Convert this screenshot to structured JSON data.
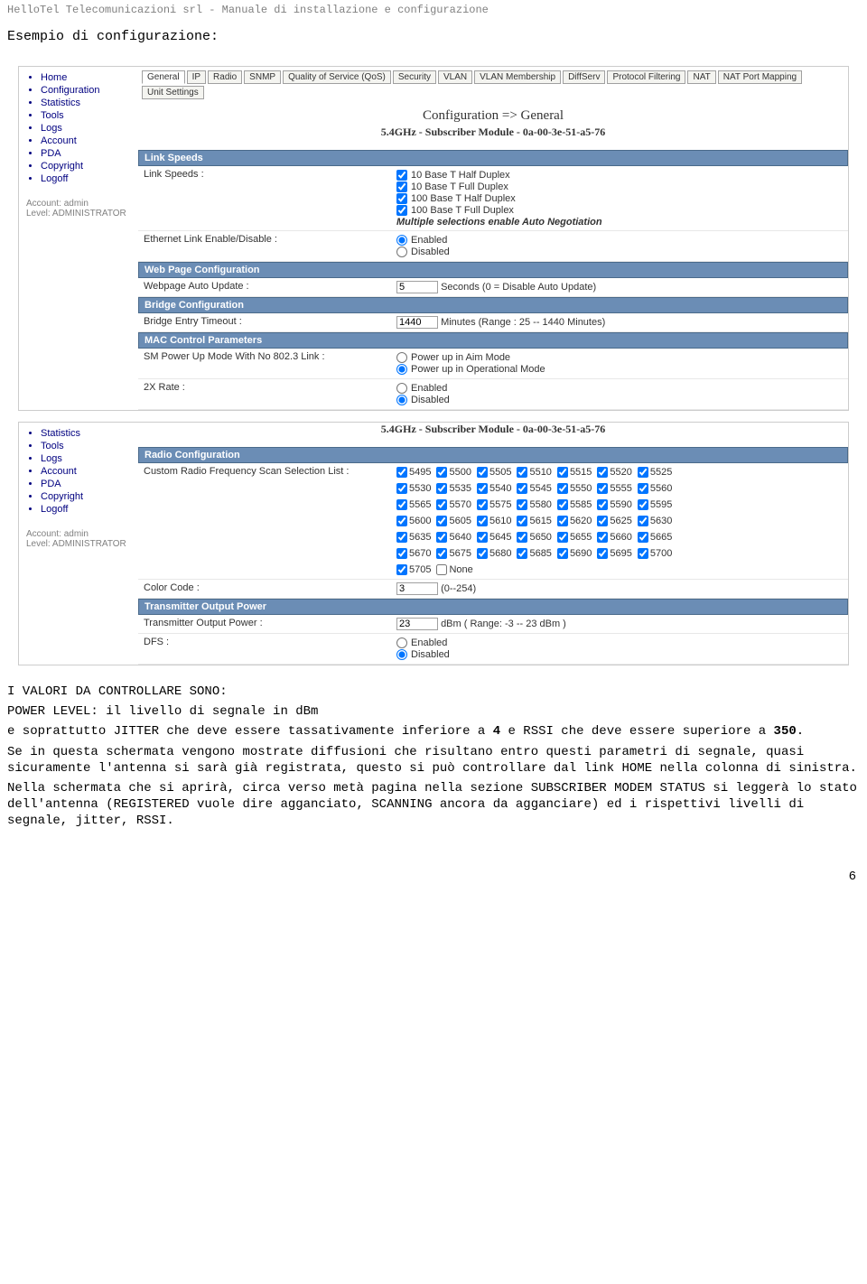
{
  "doc": {
    "header": "HelloTel Telecomunicazioni srl - Manuale di installazione e configurazione",
    "title": "Esempio di configurazione:",
    "page_number": "6"
  },
  "sidebar": {
    "items": [
      "Home",
      "Configuration",
      "Statistics",
      "Tools",
      "Logs",
      "Account",
      "PDA",
      "Copyright",
      "Logoff"
    ],
    "account": "Account: admin",
    "level": "Level: ADMINISTRATOR"
  },
  "sidebar2": {
    "items": [
      "Statistics",
      "Tools",
      "Logs",
      "Account",
      "PDA",
      "Copyright",
      "Logoff"
    ],
    "account": "Account: admin",
    "level": "Level: ADMINISTRATOR"
  },
  "tabs": [
    "General",
    "IP",
    "Radio",
    "SNMP",
    "Quality of Service (QoS)",
    "Security",
    "VLAN",
    "VLAN Membership",
    "DiffServ",
    "Protocol Filtering",
    "NAT",
    "NAT Port Mapping",
    "Unit Settings"
  ],
  "page1": {
    "title": "Configuration => General",
    "subtitle": "5.4GHz - Subscriber Module - 0a-00-3e-51-a5-76",
    "sec_linkspeeds": {
      "header": "Link Speeds",
      "label": "Link Speeds :",
      "opts": [
        "10 Base T Half Duplex",
        "10 Base T Full Duplex",
        "100 Base T Half Duplex",
        "100 Base T Full Duplex"
      ],
      "note": "Multiple selections enable Auto Negotiation",
      "eth_label": "Ethernet Link Enable/Disable :",
      "enabled": "Enabled",
      "disabled": "Disabled"
    },
    "sec_web": {
      "header": "Web Page Configuration",
      "label": "Webpage Auto Update :",
      "value": "5",
      "suffix": "Seconds (0 = Disable Auto Update)"
    },
    "sec_bridge": {
      "header": "Bridge Configuration",
      "label": "Bridge Entry Timeout :",
      "value": "1440",
      "suffix": "Minutes (Range : 25 -- 1440 Minutes)"
    },
    "sec_mac": {
      "header": "MAC Control Parameters",
      "pwr_label": "SM Power Up Mode With No 802.3 Link :",
      "pwr_opt1": "Power up in Aim Mode",
      "pwr_opt2": "Power up in Operational Mode",
      "rate_label": "2X Rate :",
      "enabled": "Enabled",
      "disabled": "Disabled"
    }
  },
  "page2": {
    "subtitle": "5.4GHz - Subscriber Module - 0a-00-3e-51-a5-76",
    "sec_radio": {
      "header": "Radio Configuration",
      "label": "Custom Radio Frequency Scan Selection List :",
      "freqs": [
        "5495",
        "5500",
        "5505",
        "5510",
        "5515",
        "5520",
        "5525",
        "5530",
        "5535",
        "5540",
        "5545",
        "5550",
        "5555",
        "5560",
        "5565",
        "5570",
        "5575",
        "5580",
        "5585",
        "5590",
        "5595",
        "5600",
        "5605",
        "5610",
        "5615",
        "5620",
        "5625",
        "5630",
        "5635",
        "5640",
        "5645",
        "5650",
        "5655",
        "5660",
        "5665",
        "5670",
        "5675",
        "5680",
        "5685",
        "5690",
        "5695",
        "5700",
        "5705"
      ],
      "none": "None",
      "cc_label": "Color Code :",
      "cc_value": "3",
      "cc_suffix": "(0--254)"
    },
    "sec_tx": {
      "header": "Transmitter Output Power",
      "pwr_label": "Transmitter Output Power :",
      "pwr_value": "23",
      "pwr_suffix": "dBm ( Range: -3 -- 23  dBm )",
      "dfs_label": "DFS :",
      "enabled": "Enabled",
      "disabled": "Disabled"
    }
  },
  "body": {
    "heading": "I VALORI DA CONTROLLARE SONO:",
    "p1a": "POWER LEVEL: il livello di segnale in dBm",
    "p1b_pre": "e soprattutto JITTER che deve essere tassativamente inferiore a ",
    "p1b_b1": "4",
    "p1b_mid": " e RSSI che deve essere superiore a ",
    "p1b_b2": "350",
    "p1b_post": ".",
    "p2": " Se in questa schermata vengono mostrate diffusioni che risultano entro questi parametri di segnale, quasi sicuramente l'antenna si sarà già registrata, questo si può controllare dal link HOME nella colonna di sinistra.",
    "p3": "Nella schermata che si aprirà, circa verso metà pagina nella sezione SUBSCRIBER MODEM STATUS si leggerà lo stato dell'antenna (REGISTERED vuole dire agganciato, SCANNING ancora da agganciare) ed i rispettivi livelli di segnale, jitter, RSSI."
  }
}
